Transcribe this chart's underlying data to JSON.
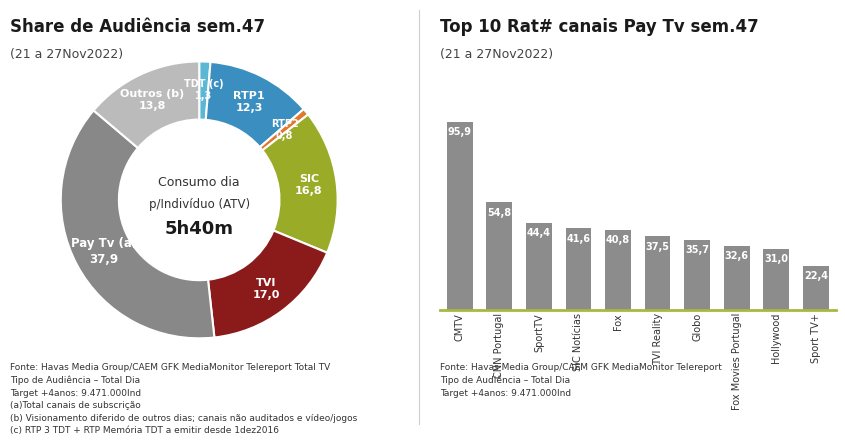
{
  "pie_title": "Share de Audiência sem.47",
  "pie_subtitle": "(21 a 27Nov2022)",
  "pie_values": [
    1.3,
    12.3,
    0.8,
    16.8,
    17.0,
    37.9,
    13.8
  ],
  "pie_colors": [
    "#5BB8D4",
    "#3A8FC0",
    "#E07830",
    "#9AAB28",
    "#8B1A1A",
    "#888888",
    "#BBBBBB"
  ],
  "pie_labels": [
    "TDT (c)\n1,3",
    "RTP1\n12,3",
    "RTP2\n0,8",
    "SIC\n16,8",
    "TVI\n17,0",
    "Pay Tv (a)\n37,9",
    "Outros (b)\n13,8"
  ],
  "pie_label_radii": [
    0.8,
    0.8,
    0.8,
    0.8,
    0.8,
    0.78,
    0.8
  ],
  "pie_label_fontsizes": [
    7,
    8,
    7,
    8,
    8,
    8.5,
    8
  ],
  "pie_center_line1": "Consumo dia",
  "pie_center_line2": "p/Indivíduo (ATV)",
  "pie_center_line3": "5h40m",
  "pie_footnote": "Fonte: Havas Media Group/CAEM GFK MediaMonitor Telereport Total TV\nTipo de Audiência – Total Dia\nTarget +4anos: 9.471.000Ind\n(a)Total canais de subscrição\n(b) Visionamento diferido de outros dias; canais não auditados e vídeo/jogos\n(c) RTP 3 TDT + RTP Memória TDT a emitir desde 1dez2016",
  "bar_title": "Top 10 Rat# canais Pay Tv sem.47",
  "bar_subtitle": "(21 a 27Nov2022)",
  "bar_categories": [
    "CMTV",
    "CNN Portugal",
    "SportTV",
    "SIC Notícias",
    "Fox",
    "TVI Reality",
    "Globo",
    "Fox Movies Portugal",
    "Hollywood",
    "Sport TV+"
  ],
  "bar_values": [
    95.9,
    54.8,
    44.4,
    41.6,
    40.8,
    37.5,
    35.7,
    32.6,
    31.0,
    22.4
  ],
  "bar_color": "#8C8C8C",
  "bar_label_color": "white",
  "bar_spine_color": "#A8B840",
  "bar_footnote": "Fonte: Havas Media Group/CAEM GFK MediaMonitor Telereport\nTipo de Audiência – Total Dia\nTarget +4anos: 9.471.000Ind",
  "background_color": "#FFFFFF",
  "divider_color": "#CCCCCC",
  "title_fontsize": 12,
  "subtitle_fontsize": 9,
  "footnote_fontsize": 6.5
}
